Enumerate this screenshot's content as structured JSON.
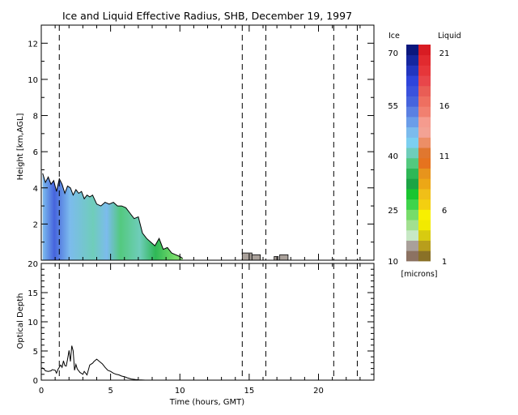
{
  "chart_data": [
    {
      "type": "heatmap",
      "title": "Ice and Liquid Effective Radius, SHB, December 19, 1997",
      "xlabel": "",
      "ylabel": "Height [km,AGL]",
      "xlim": [
        0,
        24
      ],
      "ylim": [
        0,
        13
      ],
      "xticks": [
        "0",
        "5",
        "10",
        "15",
        "20"
      ],
      "yticks": [
        "2",
        "4",
        "6",
        "8",
        "10",
        "12"
      ],
      "grid": false,
      "dashed_lines_x": [
        1.3,
        14.5,
        16.2,
        21.1,
        22.8
      ],
      "cloud_top_profile": {
        "x": [
          0.1,
          0.3,
          0.5,
          0.7,
          0.9,
          1.1,
          1.3,
          1.5,
          1.7,
          1.9,
          2.1,
          2.3,
          2.5,
          2.7,
          2.9,
          3.1,
          3.3,
          3.5,
          3.7,
          4.0,
          4.3,
          4.6,
          4.9,
          5.2,
          5.5,
          5.8,
          6.1,
          6.4,
          6.7,
          7.0,
          7.3,
          7.6,
          7.9,
          8.2,
          8.5,
          8.8,
          9.1,
          9.4,
          9.7,
          10.0,
          10.2
        ],
        "y": [
          4.8,
          4.3,
          4.6,
          4.2,
          4.4,
          3.8,
          4.5,
          4.2,
          3.7,
          4.1,
          4.0,
          3.6,
          3.9,
          3.7,
          3.8,
          3.4,
          3.6,
          3.5,
          3.6,
          3.1,
          3.0,
          3.2,
          3.1,
          3.2,
          3.0,
          3.0,
          2.9,
          2.6,
          2.3,
          2.4,
          1.5,
          1.2,
          1.0,
          0.8,
          1.2,
          0.6,
          0.7,
          0.4,
          0.3,
          0.2,
          0.1
        ]
      },
      "small_clouds": [
        {
          "x0": 14.5,
          "x1": 15.2,
          "top": 0.4
        },
        {
          "x0": 15.2,
          "x1": 15.8,
          "top": 0.3
        },
        {
          "x0": 16.8,
          "x1": 17.1,
          "top": 0.2
        },
        {
          "x0": 17.2,
          "x1": 17.8,
          "top": 0.3
        }
      ],
      "colorbar": {
        "ice_header": "Ice",
        "liquid_header": "Liquid",
        "units": "[microns]",
        "ice_ticks": [
          "10",
          "25",
          "40",
          "55",
          "70"
        ],
        "liquid_ticks": [
          "1",
          "6",
          "11",
          "16",
          "21"
        ],
        "ice_colors": [
          "#8c7262",
          "#a9a09a",
          "#c7e8c5",
          "#a2e090",
          "#77dc6a",
          "#3fd44b",
          "#19c530",
          "#1ca444",
          "#2eb756",
          "#53c97f",
          "#6fcdba",
          "#7ccff0",
          "#7cbbed",
          "#6b9de9",
          "#5b80e2",
          "#4664dd",
          "#3a52dd",
          "#2e44db",
          "#2235bf",
          "#15269f",
          "#0b177d"
        ],
        "liquid_colors": [
          "#8a7127",
          "#b89e1c",
          "#d8cb10",
          "#f2ea00",
          "#f8f000",
          "#f3cf10",
          "#f0bf18",
          "#eca716",
          "#e7941c",
          "#e6731e",
          "#e0772f",
          "#ec8e66",
          "#f3a294",
          "#f59b8e",
          "#f18070",
          "#ee6f60",
          "#e95d55",
          "#e8464a",
          "#e6363a",
          "#e12a2f",
          "#d81c23"
        ]
      }
    },
    {
      "type": "line",
      "xlabel": "Time (hours, GMT)",
      "ylabel": "Optical Depth",
      "xlim": [
        0,
        24
      ],
      "ylim": [
        0,
        20
      ],
      "xticks": [
        "0",
        "5",
        "10",
        "15",
        "20"
      ],
      "yticks": [
        "0",
        "5",
        "10",
        "15",
        "20"
      ],
      "grid": false,
      "dashed_lines_x": [
        1.3,
        14.5,
        16.2,
        21.1,
        22.8
      ],
      "series": [
        {
          "x": [
            0.0,
            0.1,
            0.2,
            0.3,
            0.5,
            0.7,
            0.8,
            1.0,
            1.1,
            1.2,
            1.4,
            1.5,
            1.6,
            1.7,
            1.8,
            1.9,
            2.0,
            2.1,
            2.2,
            2.3,
            2.4,
            2.5,
            2.6,
            2.8,
            3.0,
            3.1,
            3.3,
            3.5,
            3.7,
            3.8,
            4.0,
            4.2,
            4.4,
            4.6,
            4.8,
            5.0,
            5.2,
            5.4,
            5.6,
            5.8,
            6.0,
            6.2,
            6.5,
            6.8,
            7.0,
            7.2,
            7.5,
            8.0
          ],
          "y": [
            2.0,
            2.1,
            1.9,
            1.6,
            1.5,
            1.6,
            1.8,
            1.7,
            1.2,
            1.8,
            2.6,
            2.2,
            3.3,
            2.5,
            2.4,
            3.6,
            5.1,
            3.2,
            5.9,
            5.0,
            1.7,
            2.7,
            1.9,
            1.3,
            1.0,
            1.5,
            0.9,
            2.6,
            2.9,
            3.2,
            3.6,
            3.2,
            2.8,
            2.2,
            1.7,
            1.5,
            1.2,
            1.0,
            0.9,
            0.7,
            0.6,
            0.4,
            0.2,
            0.1,
            0.06,
            0.03,
            0.0,
            0.0
          ]
        }
      ]
    }
  ]
}
